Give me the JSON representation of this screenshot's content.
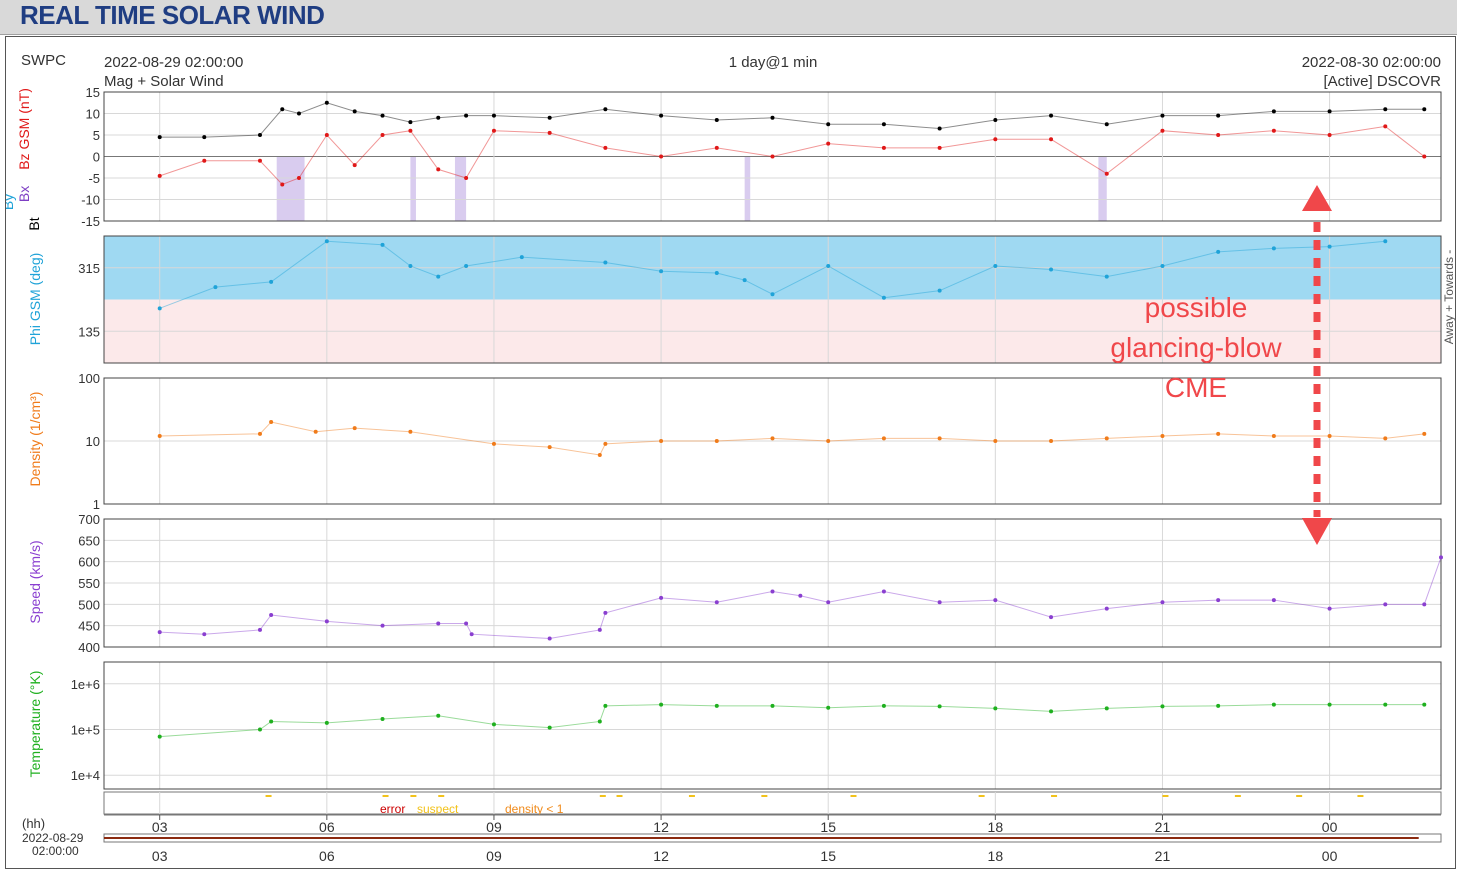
{
  "page": {
    "title": "REAL TIME SOLAR WIND"
  },
  "header": {
    "source": "SWPC",
    "start_time": "2022-08-29 02:00:00",
    "product": "Mag + Solar Wind",
    "span": "1 day@1 min",
    "end_time": "2022-08-30 02:00:00",
    "spacecraft": "[Active] DSCOVR"
  },
  "annotation": {
    "lines": [
      "possible",
      "glancing-blow",
      "CME"
    ],
    "color": "#f0474a"
  },
  "legend_quality": {
    "error": "error",
    "suspect": "suspect",
    "density": "density < 1",
    "colors": {
      "error": "#cc0000",
      "suspect": "#f2c21b",
      "density": "#f08a1a"
    }
  },
  "time_axis": {
    "unit_label": "(hh)",
    "date_label": [
      "2022-08-29",
      "02:00:00"
    ],
    "ticks": [
      "03",
      "06",
      "09",
      "12",
      "15",
      "18",
      "21",
      "00"
    ]
  },
  "chart_data": [
    {
      "type": "scatter",
      "name": "mag",
      "ylabel_parts": [
        {
          "text": "Bt",
          "color": "#000000"
        },
        {
          "text": "Bx",
          "color": "#7e3fc4"
        },
        {
          "text": "Bz GSM (nT)",
          "color": "#e01818"
        },
        {
          "text": "By",
          "color": "#1fa3d8"
        }
      ],
      "ylim": [
        -15,
        15
      ],
      "yticks": [
        "15",
        "10",
        "5",
        "0",
        "-5",
        "-10",
        "-15"
      ],
      "grid": true,
      "x_hours": [
        1.0,
        1.8,
        2.8,
        3.2,
        3.5,
        4.0,
        4.5,
        5.0,
        5.5,
        6.0,
        6.5,
        7.0,
        8.0,
        9.0,
        10.0,
        11.0,
        12.0,
        13.0,
        14.0,
        15.0,
        16.0,
        17.0,
        18.0,
        19.0,
        20.0,
        21.0,
        22.0,
        23.0,
        23.7
      ],
      "series": [
        {
          "name": "Bt",
          "color": "#000000",
          "values": [
            4.5,
            4.5,
            5.0,
            11.0,
            10.0,
            12.5,
            10.5,
            9.5,
            8.0,
            9.0,
            9.5,
            9.5,
            9.0,
            11.0,
            9.5,
            8.5,
            9.0,
            7.5,
            7.5,
            6.5,
            8.5,
            9.5,
            7.5,
            9.5,
            9.5,
            10.5,
            10.5,
            11.0,
            11.0
          ]
        },
        {
          "name": "Bz",
          "color": "#e01818",
          "values": [
            -4.5,
            -1.0,
            -1.0,
            -6.5,
            -5.0,
            5.0,
            -2.0,
            5.0,
            6.0,
            -3.0,
            -5.0,
            6.0,
            5.5,
            2.0,
            0.0,
            2.0,
            0.0,
            3.0,
            2.0,
            2.0,
            4.0,
            4.0,
            -4.0,
            6.0,
            5.0,
            6.0,
            5.0,
            7.0,
            0.0
          ]
        }
      ],
      "negative_bz_bands_hours": [
        [
          3.1,
          3.6
        ],
        [
          5.5,
          5.6
        ],
        [
          6.3,
          6.5
        ],
        [
          11.5,
          11.6
        ],
        [
          17.85,
          18.0
        ]
      ],
      "band_color": "#d9ccef"
    },
    {
      "type": "scatter",
      "name": "phi",
      "ylabel": "Phi GSM (deg)",
      "right_label": "Away + Towards -",
      "yticks": [
        "315",
        "135"
      ],
      "ylim": [
        45,
        405
      ],
      "grid": true,
      "away_color": "#9fd9f2",
      "towards_color": "#f7c0c3",
      "x_hours": [
        1.0,
        2.0,
        3.0,
        4.0,
        5.0,
        5.5,
        6.0,
        6.5,
        7.5,
        9.0,
        10.0,
        11.0,
        11.5,
        12.0,
        13.0,
        14.0,
        15.0,
        16.0,
        17.0,
        18.0,
        19.0,
        20.0,
        21.0,
        22.0,
        23.0
      ],
      "series": [
        {
          "name": "Phi",
          "color": "#1fa3d8",
          "values": [
            200,
            260,
            275,
            390,
            380,
            320,
            290,
            320,
            345,
            330,
            305,
            300,
            280,
            240,
            320,
            230,
            250,
            320,
            310,
            290,
            320,
            360,
            370,
            375,
            390
          ]
        }
      ]
    },
    {
      "type": "scatter",
      "name": "density",
      "ylabel": "Density (1/cm³)",
      "scale": "log",
      "ylim": [
        1,
        100
      ],
      "yticks": [
        "100",
        "10",
        "1"
      ],
      "grid": true,
      "x_hours": [
        1.0,
        2.8,
        3.0,
        3.8,
        4.5,
        5.5,
        7.0,
        8.0,
        8.9,
        9.0,
        10.0,
        11.0,
        12.0,
        13.0,
        14.0,
        15.0,
        16.0,
        17.0,
        18.0,
        19.0,
        20.0,
        21.0,
        22.0,
        23.0,
        23.7
      ],
      "series": [
        {
          "name": "Density",
          "color": "#f07b1a",
          "values": [
            12,
            13,
            20,
            14,
            16,
            14,
            9,
            8,
            6,
            9,
            10,
            10,
            11,
            10,
            11,
            11,
            10,
            10,
            11,
            12,
            13,
            12,
            12,
            11,
            13
          ]
        }
      ]
    },
    {
      "type": "scatter",
      "name": "speed",
      "ylabel": "Speed (km/s)",
      "ylim": [
        400,
        700
      ],
      "yticks": [
        "700",
        "650",
        "600",
        "550",
        "500",
        "450",
        "400"
      ],
      "grid": true,
      "x_hours": [
        1.0,
        1.8,
        2.8,
        3.0,
        4.0,
        5.0,
        6.0,
        6.5,
        6.6,
        8.0,
        8.9,
        9.0,
        10.0,
        11.0,
        12.0,
        12.5,
        13.0,
        14.0,
        15.0,
        16.0,
        17.0,
        18.0,
        19.0,
        20.0,
        21.0,
        22.0,
        23.0,
        23.7,
        24.0
      ],
      "series": [
        {
          "name": "Speed",
          "color": "#8a3fd0",
          "values": [
            435,
            430,
            440,
            475,
            460,
            450,
            455,
            455,
            430,
            420,
            440,
            480,
            515,
            505,
            530,
            520,
            505,
            530,
            505,
            510,
            470,
            490,
            505,
            510,
            510,
            490,
            500,
            500,
            610
          ]
        }
      ]
    },
    {
      "type": "scatter",
      "name": "temperature",
      "ylabel": "Temperature (°K)",
      "scale": "log",
      "ylim": [
        5000,
        3000000
      ],
      "yticks": [
        "1e+6",
        "1e+5",
        "1e+4"
      ],
      "grid": true,
      "x_hours": [
        1.0,
        2.8,
        3.0,
        4.0,
        5.0,
        6.0,
        7.0,
        8.0,
        8.9,
        9.0,
        10.0,
        11.0,
        12.0,
        13.0,
        14.0,
        15.0,
        16.0,
        17.0,
        18.0,
        19.0,
        20.0,
        21.0,
        22.0,
        23.0,
        23.7
      ],
      "series": [
        {
          "name": "Temperature",
          "color": "#1fb01f",
          "values": [
            70000,
            100000,
            150000,
            140000,
            170000,
            200000,
            130000,
            110000,
            150000,
            330000,
            350000,
            330000,
            330000,
            300000,
            330000,
            320000,
            290000,
            250000,
            290000,
            320000,
            330000,
            350000,
            350000,
            350000,
            350000
          ]
        }
      ]
    }
  ]
}
